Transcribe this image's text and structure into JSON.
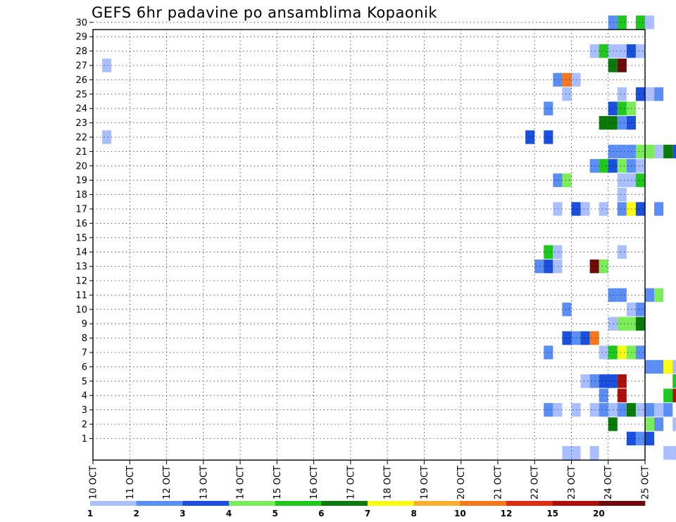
{
  "chart_data": {
    "type": "heatmap",
    "title": "GEFS 6hr padavine po ansamblima Kopaonik",
    "xlabel": "",
    "ylabel": "",
    "x_ticks": [
      "10 OCT",
      "11 OCT",
      "12 OCT",
      "13 OCT",
      "14 OCT",
      "15 OCT",
      "16 OCT",
      "17 OCT",
      "18 OCT",
      "19 OCT",
      "20 OCT",
      "21 OCT",
      "22 OCT",
      "23 OCT",
      "24 OCT",
      "25 OCT"
    ],
    "y_ticks": [
      1,
      2,
      3,
      4,
      5,
      6,
      7,
      8,
      9,
      10,
      11,
      12,
      13,
      14,
      15,
      16,
      17,
      18,
      19,
      20,
      21,
      22,
      23,
      24,
      25,
      26,
      27,
      28,
      29,
      30
    ],
    "xlim_days": [
      10,
      25
    ],
    "time_step_hours": 6,
    "ylim": [
      0,
      30
    ],
    "grid": true,
    "colorbar": {
      "labels": [
        "1",
        "2",
        "3",
        "4",
        "5",
        "6",
        "7",
        "8",
        "10",
        "12",
        "15",
        "20"
      ],
      "colors": [
        "#aabfff",
        "#5a8ef5",
        "#1a50dc",
        "#7ced5a",
        "#1ec81e",
        "#0a7a0a",
        "#fafa14",
        "#faae32",
        "#f5781e",
        "#dc2d14",
        "#af0f0a",
        "#6e0a0a"
      ]
    },
    "cells": [
      [
        30,
        56,
        2
      ],
      [
        30,
        57,
        5
      ],
      [
        30,
        59,
        5
      ],
      [
        30,
        60,
        1
      ],
      [
        30,
        70,
        3
      ],
      [
        30,
        71,
        11
      ],
      [
        30,
        72,
        4
      ],
      [
        30,
        76,
        1
      ],
      [
        30,
        79,
        1
      ],
      [
        30,
        80,
        3
      ],
      [
        29,
        76,
        5
      ],
      [
        29,
        77,
        2
      ],
      [
        28,
        54,
        1
      ],
      [
        28,
        55,
        5
      ],
      [
        28,
        56,
        1
      ],
      [
        28,
        57,
        1
      ],
      [
        28,
        58,
        3
      ],
      [
        28,
        59,
        1
      ],
      [
        27,
        1,
        1
      ],
      [
        27,
        56,
        6
      ],
      [
        27,
        57,
        12
      ],
      [
        27,
        69,
        1
      ],
      [
        27,
        72,
        1
      ],
      [
        27,
        74,
        1
      ],
      [
        26,
        50,
        2
      ],
      [
        26,
        51,
        9
      ],
      [
        26,
        52,
        1
      ],
      [
        26,
        68,
        4
      ],
      [
        26,
        73,
        2
      ],
      [
        26,
        74,
        6
      ],
      [
        26,
        75,
        3
      ],
      [
        26,
        76,
        6
      ],
      [
        26,
        77,
        12
      ],
      [
        26,
        78,
        1
      ],
      [
        26,
        79,
        9
      ],
      [
        26,
        80,
        3
      ],
      [
        26,
        82,
        4
      ],
      [
        26,
        83,
        10
      ],
      [
        26,
        84,
        6
      ],
      [
        26,
        85,
        3
      ],
      [
        26,
        86,
        6
      ],
      [
        26,
        87,
        1
      ],
      [
        25,
        51,
        1
      ],
      [
        25,
        57,
        1
      ],
      [
        25,
        59,
        3
      ],
      [
        25,
        60,
        1
      ],
      [
        25,
        61,
        2
      ],
      [
        25,
        74,
        1
      ],
      [
        24,
        49,
        2
      ],
      [
        24,
        56,
        3
      ],
      [
        24,
        57,
        5
      ],
      [
        24,
        58,
        4
      ],
      [
        23,
        55,
        6
      ],
      [
        23,
        56,
        6
      ],
      [
        23,
        57,
        2
      ],
      [
        23,
        58,
        3
      ],
      [
        22,
        1,
        1
      ],
      [
        22,
        47,
        3
      ],
      [
        22,
        49,
        3
      ],
      [
        21,
        56,
        2
      ],
      [
        21,
        57,
        2
      ],
      [
        21,
        58,
        2
      ],
      [
        21,
        59,
        4
      ],
      [
        21,
        60,
        4
      ],
      [
        21,
        61,
        1
      ],
      [
        21,
        62,
        6
      ],
      [
        21,
        63,
        3
      ],
      [
        21,
        64,
        2
      ],
      [
        21,
        66,
        1
      ],
      [
        21,
        71,
        3
      ],
      [
        21,
        72,
        1
      ],
      [
        21,
        81,
        3
      ],
      [
        20,
        54,
        2
      ],
      [
        20,
        55,
        5
      ],
      [
        20,
        56,
        3
      ],
      [
        20,
        57,
        4
      ],
      [
        20,
        58,
        2
      ],
      [
        20,
        59,
        1
      ],
      [
        20,
        83,
        1
      ],
      [
        20,
        84,
        4
      ],
      [
        20,
        85,
        3
      ],
      [
        20,
        86,
        2
      ],
      [
        20,
        87,
        2
      ],
      [
        19,
        50,
        2
      ],
      [
        19,
        51,
        4
      ],
      [
        19,
        57,
        1
      ],
      [
        19,
        58,
        1
      ],
      [
        19,
        59,
        5
      ],
      [
        18,
        57,
        1
      ],
      [
        17,
        50,
        1
      ],
      [
        17,
        52,
        3
      ],
      [
        17,
        53,
        1
      ],
      [
        17,
        55,
        1
      ],
      [
        17,
        57,
        2
      ],
      [
        17,
        58,
        7
      ],
      [
        17,
        59,
        3
      ],
      [
        17,
        61,
        2
      ],
      [
        17,
        87,
        1
      ],
      [
        15,
        73,
        1
      ],
      [
        15,
        79,
        1
      ],
      [
        14,
        49,
        5
      ],
      [
        14,
        50,
        1
      ],
      [
        14,
        57,
        1
      ],
      [
        13,
        48,
        2
      ],
      [
        13,
        49,
        3
      ],
      [
        13,
        50,
        1
      ],
      [
        13,
        54,
        12
      ],
      [
        13,
        55,
        4
      ],
      [
        12,
        64,
        3
      ],
      [
        12,
        65,
        10
      ],
      [
        12,
        66,
        6
      ],
      [
        12,
        71,
        1
      ],
      [
        12,
        72,
        1
      ],
      [
        11,
        56,
        2
      ],
      [
        11,
        57,
        2
      ],
      [
        11,
        60,
        2
      ],
      [
        11,
        61,
        4
      ],
      [
        10,
        51,
        2
      ],
      [
        10,
        58,
        1
      ],
      [
        10,
        59,
        2
      ],
      [
        10,
        64,
        1
      ],
      [
        9,
        56,
        1
      ],
      [
        9,
        57,
        4
      ],
      [
        9,
        58,
        4
      ],
      [
        9,
        59,
        6
      ],
      [
        8,
        51,
        3
      ],
      [
        8,
        52,
        2
      ],
      [
        8,
        53,
        3
      ],
      [
        8,
        54,
        9
      ],
      [
        7,
        49,
        2
      ],
      [
        7,
        55,
        1
      ],
      [
        7,
        56,
        5
      ],
      [
        7,
        57,
        7
      ],
      [
        7,
        58,
        4
      ],
      [
        7,
        59,
        2
      ],
      [
        7,
        67,
        4
      ],
      [
        7,
        68,
        5
      ],
      [
        7,
        71,
        2
      ],
      [
        7,
        72,
        2
      ],
      [
        7,
        73,
        4
      ],
      [
        7,
        74,
        1
      ],
      [
        6,
        60,
        2
      ],
      [
        6,
        61,
        2
      ],
      [
        6,
        62,
        7
      ],
      [
        6,
        63,
        1
      ],
      [
        6,
        64,
        2
      ],
      [
        6,
        65,
        1
      ],
      [
        6,
        73,
        2
      ],
      [
        6,
        75,
        3
      ],
      [
        6,
        76,
        1
      ],
      [
        6,
        80,
        3
      ],
      [
        6,
        81,
        2
      ],
      [
        6,
        83,
        1
      ],
      [
        5,
        53,
        1
      ],
      [
        5,
        54,
        2
      ],
      [
        5,
        55,
        3
      ],
      [
        5,
        56,
        3
      ],
      [
        5,
        57,
        11
      ],
      [
        5,
        63,
        5
      ],
      [
        5,
        80,
        4
      ],
      [
        5,
        81,
        2
      ],
      [
        5,
        82,
        2
      ],
      [
        5,
        83,
        4
      ],
      [
        5,
        87,
        1
      ],
      [
        4,
        55,
        2
      ],
      [
        4,
        57,
        11
      ],
      [
        4,
        62,
        5
      ],
      [
        4,
        63,
        11
      ],
      [
        4,
        64,
        7
      ],
      [
        4,
        65,
        2
      ],
      [
        3,
        49,
        2
      ],
      [
        3,
        50,
        1
      ],
      [
        3,
        52,
        1
      ],
      [
        3,
        54,
        1
      ],
      [
        3,
        55,
        2
      ],
      [
        3,
        56,
        1
      ],
      [
        3,
        57,
        2
      ],
      [
        3,
        58,
        6
      ],
      [
        3,
        59,
        1
      ],
      [
        3,
        60,
        2
      ],
      [
        3,
        61,
        1
      ],
      [
        3,
        62,
        2
      ],
      [
        3,
        64,
        7
      ],
      [
        3,
        65,
        4
      ],
      [
        3,
        66,
        2
      ],
      [
        3,
        67,
        3
      ],
      [
        3,
        68,
        1
      ],
      [
        2,
        56,
        6
      ],
      [
        2,
        60,
        4
      ],
      [
        2,
        61,
        2
      ],
      [
        2,
        63,
        1
      ],
      [
        2,
        64,
        1
      ],
      [
        2,
        65,
        4
      ],
      [
        2,
        66,
        1
      ],
      [
        1,
        58,
        3
      ],
      [
        1,
        59,
        2
      ],
      [
        1,
        60,
        3
      ],
      [
        1,
        76,
        3
      ],
      [
        1,
        77,
        5
      ],
      [
        1,
        78,
        1
      ],
      [
        0,
        51,
        1
      ],
      [
        0,
        52,
        1
      ],
      [
        0,
        54,
        1
      ],
      [
        0,
        62,
        1
      ],
      [
        0,
        63,
        1
      ],
      [
        0,
        64,
        3
      ],
      [
        0,
        65,
        1
      ],
      [
        0,
        73,
        1
      ],
      [
        0,
        74,
        1
      ],
      [
        0,
        75,
        1
      ],
      [
        0,
        76,
        2
      ],
      [
        0,
        77,
        2
      ],
      [
        0,
        78,
        3
      ],
      [
        0,
        79,
        3
      ],
      [
        0,
        80,
        7
      ],
      [
        0,
        81,
        8
      ],
      [
        0,
        82,
        1
      ],
      [
        0,
        83,
        3
      ]
    ]
  }
}
